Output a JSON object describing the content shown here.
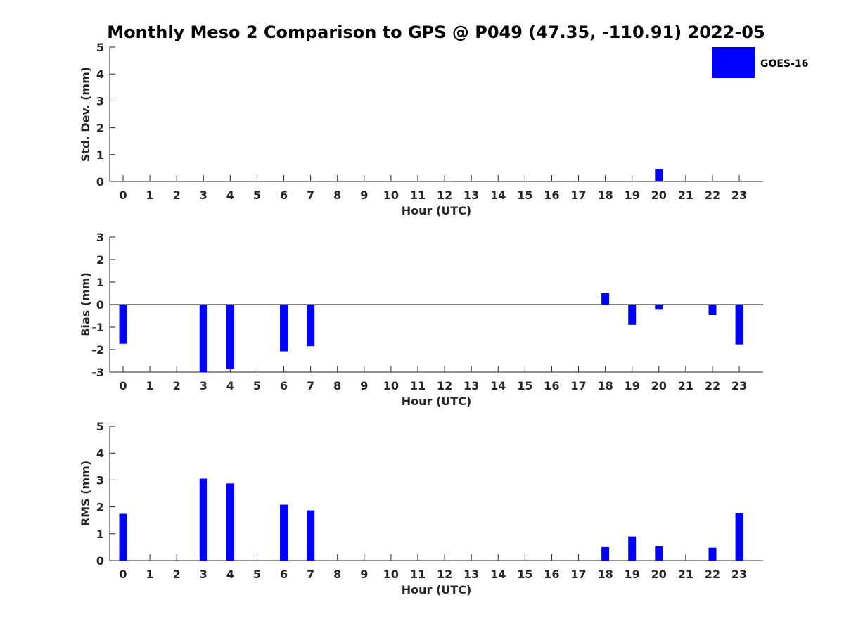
{
  "title": "Monthly Meso 2 Comparison to GPS @ P049 (47.35, -110.91) 2022-05",
  "legend": {
    "label": "GOES-16",
    "color": "#0000ff",
    "placement": "top-right"
  },
  "chart_data": [
    {
      "type": "bar",
      "ylabel": "Std. Dev. (mm)",
      "xlabel": "Hour (UTC)",
      "ylim": [
        0,
        5
      ],
      "yticks": [
        0,
        1,
        2,
        3,
        4,
        5
      ],
      "categories": [
        "0",
        "1",
        "2",
        "3",
        "4",
        "5",
        "6",
        "7",
        "8",
        "9",
        "10",
        "11",
        "12",
        "13",
        "14",
        "15",
        "16",
        "17",
        "18",
        "19",
        "20",
        "21",
        "22",
        "23"
      ],
      "series": [
        {
          "name": "GOES-16",
          "values": [
            null,
            null,
            null,
            null,
            null,
            null,
            null,
            null,
            null,
            null,
            null,
            null,
            null,
            null,
            null,
            null,
            null,
            null,
            null,
            null,
            0.47,
            null,
            null,
            null
          ]
        }
      ],
      "zero_line": false
    },
    {
      "type": "bar",
      "ylabel": "Bias (mm)",
      "xlabel": "Hour (UTC)",
      "ylim": [
        -3,
        3
      ],
      "yticks": [
        -3,
        -2,
        -1,
        0,
        1,
        2,
        3
      ],
      "categories": [
        "0",
        "1",
        "2",
        "3",
        "4",
        "5",
        "6",
        "7",
        "8",
        "9",
        "10",
        "11",
        "12",
        "13",
        "14",
        "15",
        "16",
        "17",
        "18",
        "19",
        "20",
        "21",
        "22",
        "23"
      ],
      "series": [
        {
          "name": "GOES-16",
          "values": [
            -1.74,
            null,
            null,
            -3.05,
            -2.87,
            null,
            -2.08,
            -1.85,
            null,
            null,
            null,
            null,
            null,
            null,
            null,
            null,
            null,
            null,
            0.5,
            -0.9,
            -0.23,
            null,
            -0.47,
            -1.77
          ]
        }
      ],
      "zero_line": true
    },
    {
      "type": "bar",
      "ylabel": "RMS (mm)",
      "xlabel": "Hour (UTC)",
      "ylim": [
        0,
        5
      ],
      "yticks": [
        0,
        1,
        2,
        3,
        4,
        5
      ],
      "categories": [
        "0",
        "1",
        "2",
        "3",
        "4",
        "5",
        "6",
        "7",
        "8",
        "9",
        "10",
        "11",
        "12",
        "13",
        "14",
        "15",
        "16",
        "17",
        "18",
        "19",
        "20",
        "21",
        "22",
        "23"
      ],
      "series": [
        {
          "name": "GOES-16",
          "values": [
            1.74,
            null,
            null,
            3.05,
            2.87,
            null,
            2.08,
            1.87,
            null,
            null,
            null,
            null,
            null,
            null,
            null,
            null,
            null,
            null,
            0.5,
            0.9,
            0.53,
            null,
            0.48,
            1.78
          ]
        }
      ],
      "zero_line": false
    }
  ]
}
